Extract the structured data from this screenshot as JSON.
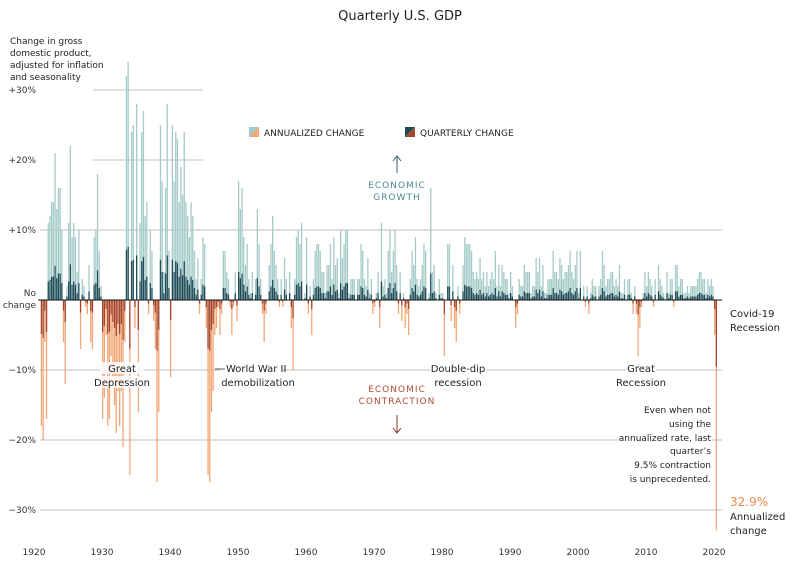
{
  "chart_data": {
    "type": "bar",
    "title": "Quarterly U.S. GDP",
    "ylabel_lines": [
      "Change in gross",
      "domestic product,",
      "adjusted for inflation",
      "and seasonality"
    ],
    "ylim": [
      -33,
      36
    ],
    "y_ticks": [
      {
        "v": 30,
        "label": "+30%"
      },
      {
        "v": 20,
        "label": "+20%"
      },
      {
        "v": 10,
        "label": "+10%"
      },
      {
        "v": -10,
        "label": "−10%"
      },
      {
        "v": -20,
        "label": "−20%"
      },
      {
        "v": -30,
        "label": "−30%"
      }
    ],
    "zero_label": [
      "No",
      "change"
    ],
    "x_ticks": [
      "1920",
      "1930",
      "1940",
      "1950",
      "1960",
      "1970",
      "1980",
      "1990",
      "2000",
      "2010",
      "2020"
    ],
    "x_tick_years": [
      1920,
      1930,
      1940,
      1950,
      1960,
      1970,
      1980,
      1990,
      2000,
      2010,
      2020
    ],
    "start": {
      "year": 1921,
      "quarter": 1
    },
    "legend": {
      "annualized": "ANNUALIZED CHANGE",
      "quarterly": "QUARTERLY CHANGE"
    },
    "colors": {
      "ann_pos": "#a5cbc8",
      "q_pos": "#1f4b57",
      "ann_neg": "#f5a676",
      "q_neg": "#a5462c"
    },
    "series_note": "quarterly change derived from annualized as ((1+a)^(1/4)-1)",
    "annualized": [
      -18,
      -20,
      -6,
      -17,
      11,
      12,
      14,
      14,
      21,
      13,
      16,
      16,
      10,
      -6,
      -12,
      2,
      11,
      22,
      9,
      11,
      9,
      4,
      10,
      -7,
      3,
      2,
      -1,
      -2,
      5,
      -6,
      -7,
      9,
      10,
      18,
      7,
      2,
      -17,
      -14,
      -5,
      -18,
      -17,
      -8,
      -12,
      -15,
      -19,
      -13,
      -18,
      -13,
      -21,
      -6,
      32,
      34,
      -25,
      24,
      25,
      -4,
      28,
      -16,
      11,
      24,
      27,
      12,
      14,
      -2,
      10,
      7,
      -3,
      -7,
      -26,
      -16,
      25,
      17,
      4,
      16,
      28,
      7,
      -11,
      25,
      17,
      24,
      23,
      14,
      19,
      15,
      24,
      14,
      12,
      9,
      14,
      12,
      7,
      3,
      6,
      -2,
      3,
      9,
      8,
      -4,
      -25,
      -26,
      -16,
      -13,
      -5,
      -4,
      -1,
      -5,
      -2,
      7,
      7,
      4,
      3,
      -1,
      -5,
      -1,
      4,
      -3,
      17,
      13,
      16,
      9,
      5,
      8,
      3,
      1,
      4,
      0,
      3,
      13,
      8,
      3,
      -2,
      -6,
      -2,
      0,
      5,
      8,
      12,
      7,
      5,
      3,
      -1,
      3,
      -1,
      6,
      3,
      0,
      4,
      -4,
      -10,
      3,
      9,
      10,
      8,
      11,
      0,
      1,
      9,
      -2,
      2,
      -5,
      3,
      7,
      8,
      8,
      7,
      4,
      4,
      1,
      5,
      5,
      8,
      3,
      9,
      5,
      6,
      1,
      10,
      6,
      8,
      10,
      10,
      1,
      3,
      3,
      3,
      0,
      3,
      3,
      8,
      7,
      3,
      2,
      6,
      1,
      3,
      -2,
      -1,
      1,
      4,
      -4,
      11,
      2,
      3,
      1,
      7,
      10,
      4,
      7,
      10,
      5,
      -2,
      4,
      -3,
      1,
      -4,
      -2,
      -5,
      3,
      7,
      5,
      9,
      3,
      2,
      3,
      5,
      8,
      7,
      0,
      1,
      16,
      4,
      5,
      1,
      0,
      3,
      1,
      1,
      -8,
      0,
      8,
      8,
      -3,
      5,
      -4,
      -6,
      2,
      -2,
      0,
      5,
      9,
      8,
      8,
      8,
      7,
      4,
      3,
      4,
      3,
      6,
      3,
      4,
      2,
      4,
      2,
      3,
      4,
      3,
      7,
      2,
      5,
      2,
      5,
      4,
      3,
      3,
      1,
      4,
      2,
      0,
      -4,
      -2,
      3,
      2,
      2,
      5,
      4,
      4,
      4,
      1,
      2,
      2,
      6,
      4,
      6,
      2,
      5,
      1,
      1,
      3,
      3,
      3,
      7,
      4,
      4,
      3,
      6,
      5,
      3,
      4,
      4,
      5,
      7,
      4,
      3,
      5,
      7,
      1,
      7,
      0,
      2,
      -1,
      2,
      -2,
      1,
      3,
      2,
      2,
      0,
      2,
      3,
      7,
      5,
      2,
      3,
      3,
      4,
      4,
      2,
      3,
      2,
      5,
      1,
      1,
      3,
      0,
      3,
      3,
      1,
      -2,
      2,
      -2,
      -8,
      -4,
      -1,
      1,
      4,
      2,
      4,
      3,
      2,
      -1,
      3,
      0,
      5,
      3,
      2,
      1,
      0,
      4,
      1,
      3,
      3,
      -1,
      5,
      5,
      2,
      3,
      3,
      1,
      1,
      2,
      1,
      2,
      2,
      2,
      2,
      3,
      4,
      4,
      3,
      3,
      1,
      3,
      2,
      3,
      2,
      -5,
      -32.9
    ],
    "annotations": {
      "growth": [
        "ECONOMIC",
        "GROWTH"
      ],
      "contraction": [
        "ECONOMIC",
        "CONTRACTION"
      ],
      "great_depression": [
        "Great",
        "Depression"
      ],
      "ww2": [
        "World War II",
        "demobilization"
      ],
      "double_dip": [
        "Double-dip",
        "recession"
      ],
      "great_recession": [
        "Great",
        "Recession"
      ],
      "covid": [
        "Covid-19",
        "Recession"
      ],
      "unprecedented": [
        "Even when not",
        "using the",
        "annualized rate, last",
        "quarter’s",
        "9.5% contraction",
        "is unprecedented."
      ],
      "latest_value": "32.9%",
      "latest_label": [
        "Annualized",
        "change"
      ]
    }
  }
}
